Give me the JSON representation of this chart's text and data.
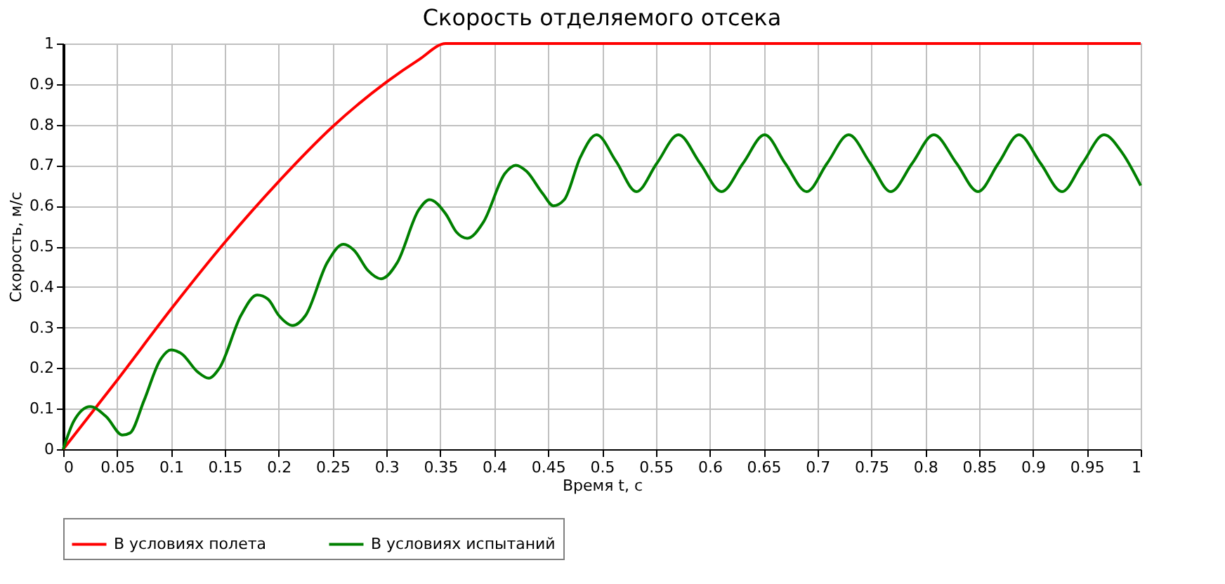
{
  "chart_data": {
    "type": "line",
    "title": "Скорость отделяемого отсека",
    "xlabel": "Время t, с",
    "ylabel": "Скорость, м/с",
    "xlim": [
      0,
      1
    ],
    "ylim": [
      0,
      1
    ],
    "xticks": [
      0,
      0.05,
      0.1,
      0.15,
      0.2,
      0.25,
      0.3,
      0.35,
      0.4,
      0.45,
      0.5,
      0.55,
      0.6,
      0.65,
      0.7,
      0.75,
      0.8,
      0.85,
      0.9,
      0.95,
      1
    ],
    "yticks": [
      0,
      0.1,
      0.2,
      0.3,
      0.4,
      0.5,
      0.6,
      0.7,
      0.8,
      0.9,
      1
    ],
    "grid": true,
    "legend": "bottom",
    "marker": "none",
    "line_style": "solid",
    "series": [
      {
        "name": "В условиях полета",
        "color": "#ff0000",
        "x": [
          0,
          0.05,
          0.1,
          0.15,
          0.2,
          0.25,
          0.3,
          0.33,
          0.355,
          1
        ],
        "values": [
          0,
          0.17,
          0.345,
          0.51,
          0.66,
          0.795,
          0.905,
          0.96,
          1,
          1
        ]
      },
      {
        "name": "В условиях испытаний",
        "color": "#008000",
        "x": [
          0,
          0.01,
          0.025,
          0.04,
          0.055,
          0.062,
          0.075,
          0.09,
          0.1,
          0.11,
          0.125,
          0.135,
          0.145,
          0.165,
          0.18,
          0.19,
          0.2,
          0.213,
          0.225,
          0.245,
          0.26,
          0.27,
          0.283,
          0.295,
          0.31,
          0.33,
          0.34,
          0.355,
          0.365,
          0.375,
          0.39,
          0.41,
          0.42,
          0.43,
          0.445,
          0.455,
          0.465,
          0.48,
          0.495,
          0.513,
          0.532,
          0.551,
          0.571,
          0.591,
          0.611,
          0.631,
          0.651,
          0.67,
          0.69,
          0.709,
          0.729,
          0.749,
          0.768,
          0.788,
          0.808,
          0.829,
          0.849,
          0.868,
          0.887,
          0.907,
          0.927,
          0.946,
          0.966,
          0.983,
          1
        ],
        "values": [
          0,
          0.07,
          0.105,
          0.08,
          0.035,
          0.04,
          0.12,
          0.22,
          0.245,
          0.235,
          0.19,
          0.175,
          0.2,
          0.33,
          0.38,
          0.37,
          0.33,
          0.305,
          0.33,
          0.46,
          0.505,
          0.49,
          0.44,
          0.42,
          0.46,
          0.59,
          0.615,
          0.58,
          0.535,
          0.52,
          0.56,
          0.68,
          0.7,
          0.685,
          0.63,
          0.6,
          0.615,
          0.72,
          0.775,
          0.71,
          0.635,
          0.705,
          0.775,
          0.705,
          0.635,
          0.705,
          0.775,
          0.705,
          0.635,
          0.705,
          0.775,
          0.705,
          0.635,
          0.705,
          0.775,
          0.705,
          0.635,
          0.705,
          0.775,
          0.705,
          0.635,
          0.705,
          0.775,
          0.73,
          0.65
        ]
      }
    ]
  }
}
